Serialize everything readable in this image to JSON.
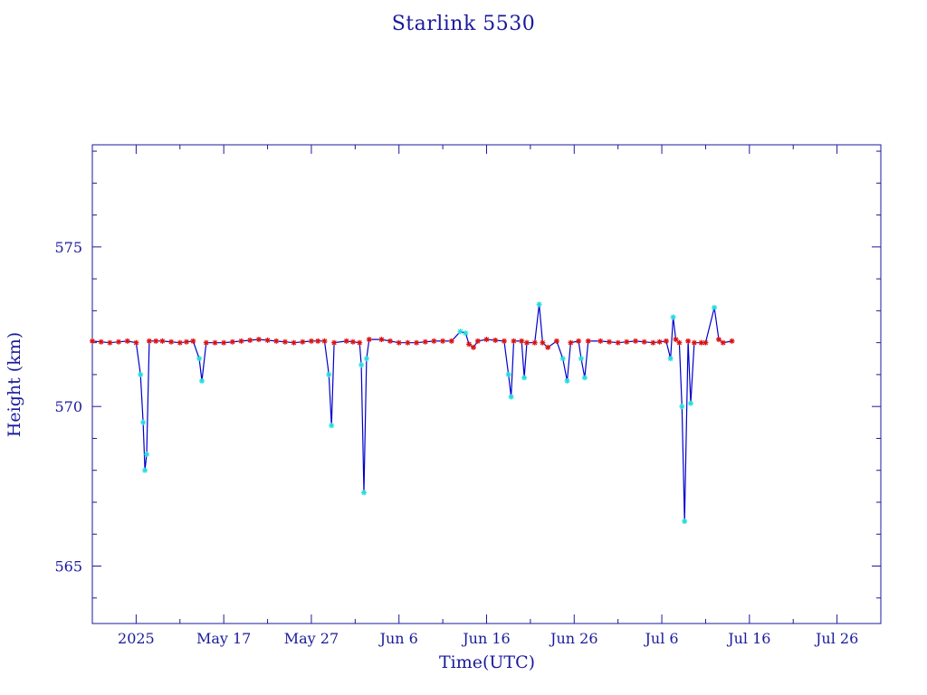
{
  "chart_data": {
    "type": "line",
    "title": "Starlink 5530",
    "xlabel": "Time(UTC)",
    "ylabel": "Height (km)",
    "x_axis_unit": "days",
    "xlim": [
      "2025-05-02",
      "2025-07-31"
    ],
    "ylim": [
      563.2,
      578.2
    ],
    "x_tick_labels": [
      {
        "date": "2025-05-07",
        "label": "2025"
      },
      {
        "date": "2025-05-17",
        "label": "May 17"
      },
      {
        "date": "2025-05-27",
        "label": "May 27"
      },
      {
        "date": "2025-06-06",
        "label": "Jun  6"
      },
      {
        "date": "2025-06-16",
        "label": "Jun 16"
      },
      {
        "date": "2025-06-26",
        "label": "Jun 26"
      },
      {
        "date": "2025-07-06",
        "label": "Jul  6"
      },
      {
        "date": "2025-07-16",
        "label": "Jul 16"
      },
      {
        "date": "2025-07-26",
        "label": "Jul 26"
      }
    ],
    "y_ticks": [
      565,
      570,
      575
    ],
    "grid": false,
    "colors": {
      "axis": "#1a1a9c",
      "line": "#0000cc",
      "marker_red": "#dd1111",
      "marker_cyan": "#22dddd"
    },
    "series": [
      {
        "values": [
          [
            "2025-05-02",
            572.05
          ],
          [
            "2025-05-04",
            572.0
          ],
          [
            "2025-05-06",
            572.05
          ],
          [
            "2025-05-07",
            572.0
          ],
          [
            "2025-05-07.5",
            571.0
          ],
          [
            "2025-05-07.8",
            569.5
          ],
          [
            "2025-05-08",
            568.0
          ],
          [
            "2025-05-08.2",
            568.5
          ],
          [
            "2025-05-08.5",
            572.05
          ],
          [
            "2025-05-10",
            572.05
          ],
          [
            "2025-05-12",
            572.0
          ],
          [
            "2025-05-13.5",
            572.05
          ],
          [
            "2025-05-14.2",
            571.5
          ],
          [
            "2025-05-14.5",
            570.8
          ],
          [
            "2025-05-15",
            572.0
          ],
          [
            "2025-05-17",
            572.0
          ],
          [
            "2025-05-19",
            572.05
          ],
          [
            "2025-05-21",
            572.1
          ],
          [
            "2025-05-23",
            572.05
          ],
          [
            "2025-05-25",
            572.0
          ],
          [
            "2025-05-27",
            572.05
          ],
          [
            "2025-05-28.5",
            572.05
          ],
          [
            "2025-05-29",
            571.0
          ],
          [
            "2025-05-29.3",
            569.4
          ],
          [
            "2025-05-29.6",
            572.0
          ],
          [
            "2025-05-31",
            572.05
          ],
          [
            "2025-06-01.5",
            572.0
          ],
          [
            "2025-06-01.7",
            571.3
          ],
          [
            "2025-06-02",
            567.3
          ],
          [
            "2025-06-02.3",
            571.5
          ],
          [
            "2025-06-02.6",
            572.1
          ],
          [
            "2025-06-04",
            572.1
          ],
          [
            "2025-06-06",
            572.0
          ],
          [
            "2025-06-08",
            572.0
          ],
          [
            "2025-06-10",
            572.05
          ],
          [
            "2025-06-12",
            572.05
          ],
          [
            "2025-06-13",
            572.35
          ],
          [
            "2025-06-13.6",
            572.3
          ],
          [
            "2025-06-14",
            571.95
          ],
          [
            "2025-06-14.5",
            571.85
          ],
          [
            "2025-06-15",
            572.05
          ],
          [
            "2025-06-16",
            572.1
          ],
          [
            "2025-06-18",
            572.05
          ],
          [
            "2025-06-18.5",
            571.0
          ],
          [
            "2025-06-18.8",
            570.3
          ],
          [
            "2025-06-19.1",
            572.05
          ],
          [
            "2025-06-20",
            572.05
          ],
          [
            "2025-06-20.3",
            570.9
          ],
          [
            "2025-06-20.6",
            572.0
          ],
          [
            "2025-06-21.5",
            572.0
          ],
          [
            "2025-06-22",
            573.2
          ],
          [
            "2025-06-22.4",
            572.0
          ],
          [
            "2025-06-23",
            571.85
          ],
          [
            "2025-06-24",
            572.05
          ],
          [
            "2025-06-24.7",
            571.5
          ],
          [
            "2025-06-25.2",
            570.8
          ],
          [
            "2025-06-25.6",
            572.0
          ],
          [
            "2025-06-26.5",
            572.05
          ],
          [
            "2025-06-26.8",
            571.5
          ],
          [
            "2025-06-27.2",
            570.9
          ],
          [
            "2025-06-27.6",
            572.05
          ],
          [
            "2025-06-29",
            572.05
          ],
          [
            "2025-07-01",
            572.0
          ],
          [
            "2025-07-03",
            572.05
          ],
          [
            "2025-07-05",
            572.0
          ],
          [
            "2025-07-06.5",
            572.05
          ],
          [
            "2025-07-07",
            571.5
          ],
          [
            "2025-07-07.3",
            572.8
          ],
          [
            "2025-07-07.6",
            572.1
          ],
          [
            "2025-07-08",
            572.0
          ],
          [
            "2025-07-08.3",
            570.0
          ],
          [
            "2025-07-08.6",
            566.4
          ],
          [
            "2025-07-09",
            572.05
          ],
          [
            "2025-07-09.3",
            570.1
          ],
          [
            "2025-07-09.7",
            572.0
          ],
          [
            "2025-07-10.5",
            572.0
          ],
          [
            "2025-07-11",
            572.0
          ],
          [
            "2025-07-12",
            573.1
          ],
          [
            "2025-07-12.5",
            572.1
          ],
          [
            "2025-07-13",
            572.0
          ],
          [
            "2025-07-14",
            572.05
          ]
        ]
      }
    ]
  }
}
